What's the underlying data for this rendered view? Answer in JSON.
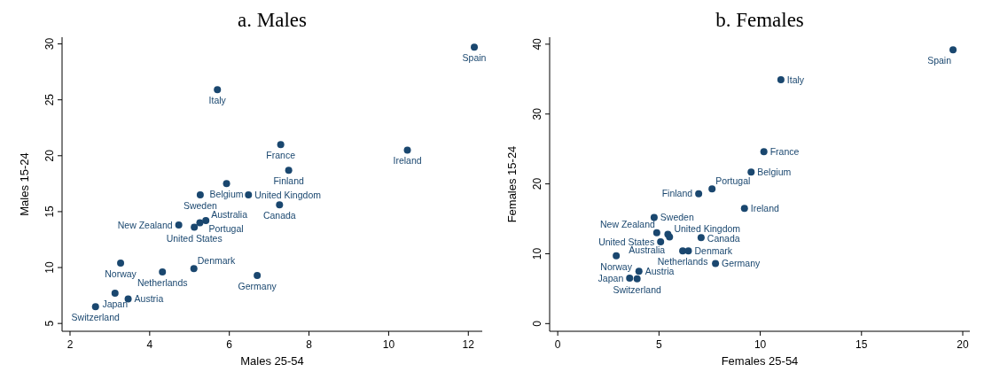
{
  "chart_data": [
    {
      "type": "scatter",
      "title": "a.  Males",
      "xlabel": "Males 25-54",
      "ylabel": "Males 15-24",
      "color": "#1a476f",
      "marker": "circle",
      "grid": false,
      "xlim": [
        1.8,
        12.35
      ],
      "ylim": [
        4.3,
        30.6
      ],
      "xticks": [
        2,
        4,
        6,
        8,
        10,
        12
      ],
      "yticks": [
        5,
        10,
        15,
        20,
        25,
        30
      ],
      "x": [
        12.15,
        5.7,
        7.29,
        10.47,
        7.49,
        5.93,
        5.27,
        6.48,
        7.26,
        5.41,
        5.26,
        5.12,
        4.73,
        3.27,
        4.32,
        5.11,
        6.7,
        3.13,
        3.46,
        2.64
      ],
      "values": [
        29.7,
        25.9,
        21.0,
        20.5,
        18.7,
        17.5,
        16.5,
        16.5,
        15.6,
        14.2,
        14.0,
        13.6,
        13.8,
        10.4,
        9.6,
        9.9,
        9.3,
        7.7,
        7.2,
        6.5
      ],
      "annotations": [
        {
          "text": "Spain",
          "x": 12.15,
          "y": 29.7
        },
        {
          "text": "Italy",
          "x": 5.7,
          "y": 25.9
        },
        {
          "text": "France",
          "x": 7.29,
          "y": 21.0
        },
        {
          "text": "Ireland",
          "x": 10.47,
          "y": 20.5
        },
        {
          "text": "Finland",
          "x": 7.49,
          "y": 18.7
        },
        {
          "text": "Belgium",
          "x": 5.93,
          "y": 17.5
        },
        {
          "text": "Sweden",
          "x": 5.27,
          "y": 16.5
        },
        {
          "text": "United Kingdom",
          "x": 6.48,
          "y": 16.5
        },
        {
          "text": "Canada",
          "x": 7.26,
          "y": 15.6
        },
        {
          "text": "Australia",
          "x": 5.41,
          "y": 14.2
        },
        {
          "text": "Portugal",
          "x": 5.26,
          "y": 14.0
        },
        {
          "text": "United States",
          "x": 5.12,
          "y": 13.6
        },
        {
          "text": "New Zealand",
          "x": 4.73,
          "y": 13.8
        },
        {
          "text": "Norway",
          "x": 3.27,
          "y": 10.4
        },
        {
          "text": "Netherlands",
          "x": 4.32,
          "y": 9.6
        },
        {
          "text": "Denmark",
          "x": 5.11,
          "y": 9.9
        },
        {
          "text": "Germany",
          "x": 6.7,
          "y": 9.3
        },
        {
          "text": "Japan",
          "x": 3.13,
          "y": 7.7
        },
        {
          "text": "Austria",
          "x": 3.46,
          "y": 7.2
        },
        {
          "text": "Switzerland",
          "x": 2.64,
          "y": 6.5
        }
      ]
    },
    {
      "type": "scatter",
      "title": "b.  Females",
      "xlabel": "Females 25-54",
      "ylabel": "Females 15-24",
      "color": "#1a476f",
      "marker": "circle",
      "grid": false,
      "xlim": [
        -0.4,
        20.35
      ],
      "ylim": [
        -1.1,
        41
      ],
      "xticks": [
        0,
        5,
        10,
        15,
        20
      ],
      "yticks": [
        0,
        10,
        20,
        30,
        40
      ],
      "x": [
        19.52,
        11.02,
        10.18,
        9.55,
        7.62,
        6.96,
        9.22,
        4.76,
        4.89,
        5.44,
        5.52,
        5.08,
        7.08,
        6.17,
        6.45,
        2.89,
        7.79,
        4.01,
        3.55,
        3.92
      ],
      "values": [
        39.2,
        34.9,
        24.6,
        21.7,
        19.3,
        18.6,
        16.5,
        15.2,
        13.0,
        12.8,
        12.4,
        11.7,
        12.3,
        10.4,
        10.4,
        9.7,
        8.6,
        7.5,
        6.5,
        6.4
      ],
      "annotations": [
        {
          "text": "Spain",
          "x": 19.52,
          "y": 39.2
        },
        {
          "text": "Italy",
          "x": 11.02,
          "y": 34.9
        },
        {
          "text": "France",
          "x": 10.18,
          "y": 24.6
        },
        {
          "text": "Belgium",
          "x": 9.55,
          "y": 21.7
        },
        {
          "text": "Portugal",
          "x": 7.62,
          "y": 19.3
        },
        {
          "text": "Finland",
          "x": 6.96,
          "y": 18.6
        },
        {
          "text": "Ireland",
          "x": 9.22,
          "y": 16.5
        },
        {
          "text": "Sweden",
          "x": 4.76,
          "y": 15.2
        },
        {
          "text": "New Zealand",
          "x": 4.89,
          "y": 13.0
        },
        {
          "text": "United Kingdom",
          "x": 5.44,
          "y": 12.8
        },
        {
          "text": "Australia",
          "x": 5.52,
          "y": 12.4
        },
        {
          "text": "United States",
          "x": 5.08,
          "y": 11.7
        },
        {
          "text": "Canada",
          "x": 7.08,
          "y": 12.3
        },
        {
          "text": "Netherlands",
          "x": 6.17,
          "y": 10.4
        },
        {
          "text": "Denmark",
          "x": 6.45,
          "y": 10.4
        },
        {
          "text": "Norway",
          "x": 2.89,
          "y": 9.7
        },
        {
          "text": "Germany",
          "x": 7.79,
          "y": 8.6
        },
        {
          "text": "Austria",
          "x": 4.01,
          "y": 7.5
        },
        {
          "text": "Japan",
          "x": 3.55,
          "y": 6.5
        },
        {
          "text": "Switzerland",
          "x": 3.92,
          "y": 6.4
        }
      ]
    }
  ]
}
